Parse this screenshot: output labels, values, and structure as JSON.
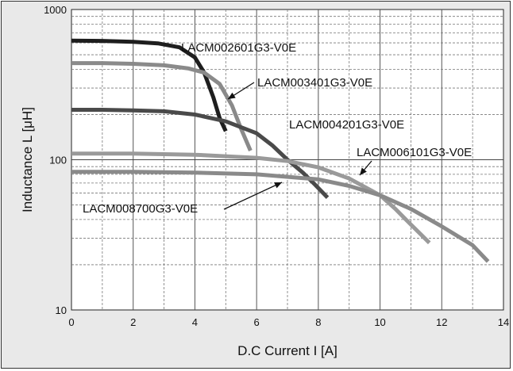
{
  "chart_data": {
    "type": "line",
    "title": "",
    "xlabel": "D.C Current I [A]",
    "ylabel": "Inductance L  [μH]",
    "xlim": [
      0,
      14
    ],
    "ylim": [
      10,
      1000
    ],
    "yscale": "log",
    "x_ticks": [
      "0",
      "2",
      "4",
      "6",
      "8",
      "10",
      "12",
      "14"
    ],
    "y_ticks": [
      "10",
      "100",
      "1000"
    ],
    "grid": true,
    "colors": {
      "background": "#e9e9e9",
      "plot_area": "#ffffff",
      "series_dark": "#1e1e1e",
      "series_mid": "#4a4a4a",
      "series_light": "#8a8a8a",
      "series_lighter": "#9a9a9a"
    },
    "series": [
      {
        "name": "LACM002601G3-V0E",
        "color": "#1e1e1e",
        "x": [
          0,
          1,
          2,
          2.8,
          3.5,
          4.0,
          4.3,
          4.6,
          4.8,
          5.0
        ],
        "y": [
          620,
          618,
          610,
          595,
          560,
          480,
          380,
          260,
          190,
          155
        ]
      },
      {
        "name": "LACM003401G3-V0E",
        "color": "#8a8a8a",
        "x": [
          0,
          1,
          2,
          3,
          3.8,
          4.3,
          4.8,
          5.2,
          5.5,
          5.8
        ],
        "y": [
          440,
          440,
          435,
          425,
          405,
          380,
          320,
          230,
          160,
          115
        ]
      },
      {
        "name": "LACM004201G3-V0E",
        "color": "#4a4a4a",
        "x": [
          0,
          1,
          2,
          3,
          4,
          5,
          6,
          6.5,
          7,
          7.5,
          7.9,
          8.3
        ],
        "y": [
          215,
          215,
          213,
          210,
          200,
          180,
          150,
          125,
          100,
          82,
          68,
          56
        ]
      },
      {
        "name": "LACM006101G3-V0E",
        "color": "#9a9a9a",
        "x": [
          0,
          2,
          4,
          6,
          7,
          8,
          9,
          10,
          10.5,
          11,
          11.6
        ],
        "y": [
          110,
          110,
          108,
          103,
          98,
          89,
          75,
          58,
          47,
          37,
          28
        ]
      },
      {
        "name": "LACM008700G3-V0E",
        "color": "#8a8a8a",
        "x": [
          0,
          2,
          4,
          6,
          8,
          9,
          10,
          11,
          12,
          13,
          13.5
        ],
        "y": [
          83,
          83,
          82,
          80,
          74,
          67,
          58,
          47,
          36,
          27,
          21
        ]
      }
    ],
    "annotations": [
      {
        "text": "LACM002601G3-V0E",
        "series": 0
      },
      {
        "text": "LACM003401G3-V0E",
        "series": 1
      },
      {
        "text": "LACM004201G3-V0E",
        "series": 2
      },
      {
        "text": "LACM006101G3-V0E",
        "series": 3
      },
      {
        "text": "LACM008700G3-V0E",
        "series": 4
      }
    ]
  }
}
